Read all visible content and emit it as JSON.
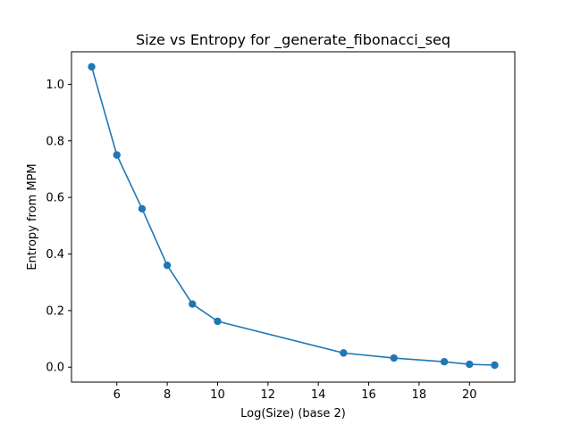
{
  "chart_data": {
    "type": "line",
    "title": "Size vs Entropy for _generate_fibonacci_seq",
    "xlabel": "Log(Size) (base 2)",
    "ylabel": "Entropy from MPM",
    "xlim": [
      4.2,
      21.8
    ],
    "ylim": [
      -0.053,
      1.115
    ],
    "x_ticks": [
      6,
      8,
      10,
      12,
      14,
      16,
      18,
      20
    ],
    "y_ticks": [
      0.0,
      0.2,
      0.4,
      0.6,
      0.8,
      1.0
    ],
    "x_tick_labels": [
      "6",
      "8",
      "10",
      "12",
      "14",
      "16",
      "18",
      "20"
    ],
    "y_tick_labels": [
      "0.0",
      "0.2",
      "0.4",
      "0.6",
      "0.8",
      "1.0"
    ],
    "grid": false,
    "series": [
      {
        "color": "#1f77b4",
        "marker": "circle",
        "x": [
          5,
          6,
          7,
          8,
          9,
          10,
          15,
          17,
          19,
          20,
          21
        ],
        "y": [
          1.062,
          0.75,
          0.56,
          0.36,
          0.223,
          0.162,
          0.05,
          0.032,
          0.019,
          0.01,
          0.007
        ]
      }
    ]
  }
}
